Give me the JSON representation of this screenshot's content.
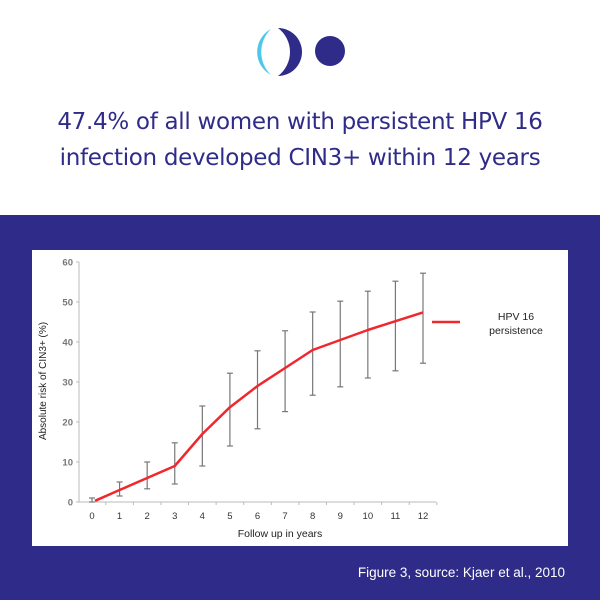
{
  "headline": {
    "line1": "47.4% of all women with persistent HPV 16",
    "line2": "infection developed CIN3+ within 12 years"
  },
  "caption": "Figure 3, source: Kjaer et al., 2010",
  "colors": {
    "brand": "#2f2b88",
    "accent": "#4fc8e8",
    "line": "#f0282e"
  },
  "chart_data": {
    "type": "line",
    "title": "",
    "xlabel": "Follow up in years",
    "ylabel": "Absolute risk of CIN3+ (%)",
    "xlim": [
      0,
      12
    ],
    "ylim": [
      0,
      60
    ],
    "x_ticks": [
      "0",
      "1",
      "2",
      "3",
      "4",
      "5",
      "6",
      "7",
      "8",
      "9",
      "10",
      "11",
      "12"
    ],
    "y_ticks": [
      "0",
      "10",
      "20",
      "30",
      "40",
      "50",
      "60"
    ],
    "grid": false,
    "legend": {
      "placement": "right",
      "entries": [
        {
          "line1": "HPV 16",
          "line2": "persistence"
        }
      ]
    },
    "series": [
      {
        "name": "HPV 16 persistence",
        "x": [
          0,
          1,
          2,
          3,
          4,
          5,
          6,
          7,
          8,
          9,
          10,
          11,
          12
        ],
        "values": [
          0.3,
          3,
          6,
          9,
          17,
          23.7,
          29,
          33.5,
          38,
          40.5,
          43,
          45.2,
          47.4
        ],
        "error_low": [
          0,
          1.5,
          3.3,
          4.5,
          9,
          14,
          18.3,
          22.6,
          26.7,
          28.8,
          31,
          32.8,
          34.7
        ],
        "error_high": [
          1,
          5,
          10,
          14.8,
          24,
          32.2,
          37.8,
          42.8,
          47.5,
          50.2,
          52.7,
          55.2,
          57.2
        ]
      }
    ]
  }
}
